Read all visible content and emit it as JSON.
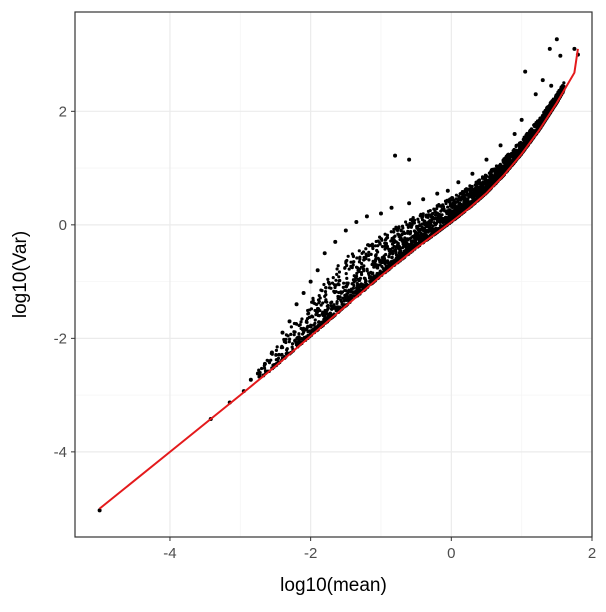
{
  "chart_data": {
    "type": "scatter",
    "title": "",
    "xlabel": "log10(mean)",
    "ylabel": "log10(Var)",
    "xlim": [
      -5.35,
      2.0
    ],
    "ylim": [
      -5.5,
      3.75
    ],
    "x_ticks": [
      -4,
      -2,
      0,
      2
    ],
    "x_tick_labels": [
      "-4",
      "-2",
      "0",
      "2"
    ],
    "y_ticks": [
      -4,
      -2,
      0,
      2
    ],
    "y_tick_labels": [
      "-4",
      "-2",
      "0",
      "2"
    ],
    "grid": true,
    "legend": "none",
    "colors": {
      "points": "#000000",
      "fit_line": "#e41a1c",
      "panel_border": "#333333",
      "grid_major": "#ebebeb",
      "grid_minor": "#f5f5f5"
    },
    "series": [
      {
        "type": "scatter",
        "color": "#000000",
        "points": [
          [
            -5.0,
            -5.03
          ],
          [
            -3.42,
            -3.42
          ],
          [
            -3.15,
            -3.13
          ],
          [
            -2.95,
            -2.93
          ],
          [
            -2.85,
            -2.73
          ],
          [
            -2.75,
            -2.62
          ],
          [
            -2.65,
            -2.45
          ],
          [
            -2.55,
            -2.25
          ],
          [
            -2.4,
            -1.9
          ],
          [
            -2.3,
            -1.7
          ],
          [
            -2.2,
            -1.4
          ],
          [
            -2.1,
            -1.2
          ],
          [
            -2.0,
            -1.0
          ],
          [
            -1.9,
            -0.8
          ],
          [
            -1.8,
            -0.5
          ],
          [
            -1.65,
            -0.3
          ],
          [
            -1.5,
            -0.1
          ],
          [
            -1.35,
            0.05
          ],
          [
            -1.2,
            0.15
          ],
          [
            -1.0,
            0.2
          ],
          [
            -0.85,
            0.3
          ],
          [
            -0.6,
            0.38
          ],
          [
            -0.4,
            0.45
          ],
          [
            -0.2,
            0.55
          ],
          [
            -0.05,
            0.6
          ],
          [
            0.1,
            0.75
          ],
          [
            0.3,
            0.9
          ],
          [
            0.5,
            1.15
          ],
          [
            0.7,
            1.4
          ],
          [
            0.9,
            1.6
          ],
          [
            1.0,
            1.85
          ],
          [
            1.2,
            2.3
          ],
          [
            1.3,
            2.55
          ],
          [
            1.42,
            2.45
          ],
          [
            1.5,
            3.27
          ],
          [
            1.55,
            2.98
          ],
          [
            1.75,
            3.1
          ],
          [
            1.8,
            3.0
          ],
          [
            -0.8,
            1.22
          ],
          [
            -0.6,
            1.15
          ],
          [
            1.05,
            2.7
          ],
          [
            1.4,
            3.1
          ]
        ],
        "dense_region": {
          "x_range": [
            -2.75,
            1.6
          ],
          "approx_point_count": 3000
        }
      },
      {
        "type": "line",
        "color": "#e41a1c",
        "x": [
          -5.0,
          -4.0,
          -3.0,
          -2.5,
          -2.0,
          -1.5,
          -1.0,
          -0.5,
          0.0,
          0.25,
          0.5,
          0.75,
          1.0,
          1.25,
          1.5,
          1.75,
          1.8
        ],
        "y": [
          -5.0,
          -4.0,
          -3.0,
          -2.49,
          -1.96,
          -1.43,
          -0.9,
          -0.41,
          0.05,
          0.29,
          0.56,
          0.88,
          1.25,
          1.67,
          2.15,
          2.68,
          3.1
        ]
      }
    ]
  }
}
